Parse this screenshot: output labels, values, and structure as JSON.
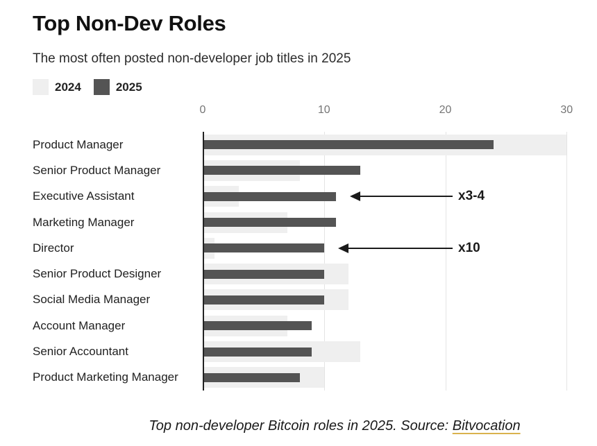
{
  "header": {
    "title": "Top Non-Dev Roles",
    "subtitle": "The most often posted non-developer job titles in 2025"
  },
  "legend": [
    {
      "label": "2024",
      "color": "#efefef"
    },
    {
      "label": "2025",
      "color": "#545454"
    }
  ],
  "chart_data": {
    "type": "bar",
    "orientation": "horizontal",
    "title": "Top Non-Dev Roles",
    "subtitle": "The most often posted non-developer job titles in 2025",
    "categories": [
      "Product Manager",
      "Senior Product Manager",
      "Executive Assistant",
      "Marketing Manager",
      "Director",
      "Senior Product Designer",
      "Social Media Manager",
      "Account Manager",
      "Senior Accountant",
      "Product Marketing Manager"
    ],
    "series": [
      {
        "name": "2024",
        "color": "#efefef",
        "values": [
          30,
          8,
          3,
          7,
          1,
          12,
          12,
          7,
          13,
          10
        ]
      },
      {
        "name": "2025",
        "color": "#545454",
        "values": [
          24,
          13,
          11,
          11,
          10,
          10,
          10,
          9,
          9,
          8
        ]
      }
    ],
    "x_ticks": [
      0,
      10,
      20,
      30
    ],
    "xlim": [
      0,
      30.5
    ],
    "grid": "vertical",
    "legend_position": "top-left",
    "annotations": [
      {
        "text": "x3-4",
        "row": "Executive Assistant",
        "row_index": 2
      },
      {
        "text": "x10",
        "row": "Director",
        "row_index": 4
      }
    ],
    "colors": {
      "gridline": "#e4e4e4",
      "axis_line": "#222222",
      "tick_label": "#757575",
      "category_label": "#212121",
      "annotation": "#1a1a1a",
      "link_underline": "#d9b24d"
    }
  },
  "caption": {
    "text": "Top non-developer Bitcoin roles in 2025. Source: ",
    "link_text": "Bitvocation"
  }
}
